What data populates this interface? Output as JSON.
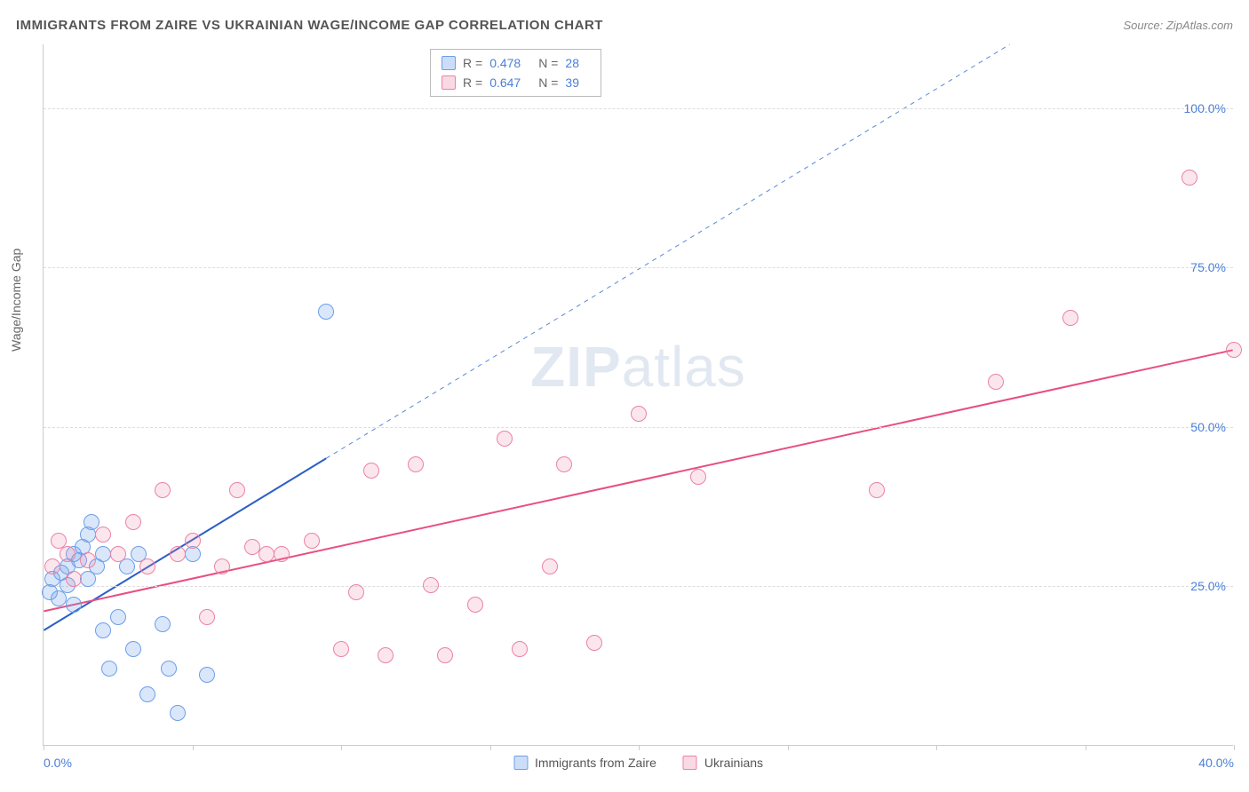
{
  "title": "IMMIGRANTS FROM ZAIRE VS UKRAINIAN WAGE/INCOME GAP CORRELATION CHART",
  "source": "Source: ZipAtlas.com",
  "y_axis_label": "Wage/Income Gap",
  "watermark": {
    "part1": "ZIP",
    "part2": "atlas"
  },
  "chart": {
    "type": "scatter",
    "xlim": [
      0,
      40
    ],
    "ylim": [
      0,
      110
    ],
    "x_ticks": [
      0,
      5,
      10,
      15,
      20,
      25,
      30,
      35,
      40
    ],
    "x_tick_labels": [
      "0.0%",
      "",
      "",
      "",
      "",
      "",
      "",
      "",
      "40.0%"
    ],
    "y_ticks": [
      25,
      50,
      75,
      100
    ],
    "y_tick_labels": [
      "25.0%",
      "50.0%",
      "75.0%",
      "100.0%"
    ],
    "background_color": "#ffffff",
    "grid_color": "#dddddd",
    "axis_color": "#cccccc",
    "marker_radius": 9,
    "series": [
      {
        "id": "s1",
        "label": "Immigrants from Zaire",
        "color_fill": "rgba(108,158,234,0.25)",
        "color_stroke": "#6c9eea",
        "r": "0.478",
        "n": "28",
        "trend": {
          "x1": 0,
          "y1": 18,
          "x2": 9.5,
          "y2": 45,
          "stroke": "#2b5fc7",
          "width": 2,
          "dash": "none"
        },
        "trend_ext": {
          "x1": 9.5,
          "y1": 45,
          "x2": 32.5,
          "y2": 110,
          "stroke": "#5a88d6",
          "width": 1,
          "dash": "5,5"
        },
        "points": [
          [
            0.2,
            24
          ],
          [
            0.3,
            26
          ],
          [
            0.5,
            23
          ],
          [
            0.6,
            27
          ],
          [
            0.8,
            25
          ],
          [
            0.8,
            28
          ],
          [
            1.0,
            22
          ],
          [
            1.0,
            30
          ],
          [
            1.2,
            29
          ],
          [
            1.3,
            31
          ],
          [
            1.5,
            26
          ],
          [
            1.5,
            33
          ],
          [
            1.6,
            35
          ],
          [
            1.8,
            28
          ],
          [
            2.0,
            30
          ],
          [
            2.0,
            18
          ],
          [
            2.2,
            12
          ],
          [
            2.5,
            20
          ],
          [
            2.8,
            28
          ],
          [
            3.0,
            15
          ],
          [
            3.2,
            30
          ],
          [
            3.5,
            8
          ],
          [
            4.0,
            19
          ],
          [
            4.2,
            12
          ],
          [
            4.5,
            5
          ],
          [
            5.0,
            30
          ],
          [
            5.5,
            11
          ],
          [
            9.5,
            68
          ]
        ]
      },
      {
        "id": "s2",
        "label": "Ukrainians",
        "color_fill": "rgba(236,130,164,0.20)",
        "color_stroke": "#ec82a4",
        "r": "0.647",
        "n": "39",
        "trend": {
          "x1": 0,
          "y1": 21,
          "x2": 40,
          "y2": 62,
          "stroke": "#e84f7e",
          "width": 2,
          "dash": "none"
        },
        "points": [
          [
            0.3,
            28
          ],
          [
            0.5,
            32
          ],
          [
            0.8,
            30
          ],
          [
            1.0,
            26
          ],
          [
            1.5,
            29
          ],
          [
            2.0,
            33
          ],
          [
            2.5,
            30
          ],
          [
            3.0,
            35
          ],
          [
            3.5,
            28
          ],
          [
            4.0,
            40
          ],
          [
            4.5,
            30
          ],
          [
            5.0,
            32
          ],
          [
            5.5,
            20
          ],
          [
            6.0,
            28
          ],
          [
            6.5,
            40
          ],
          [
            7.0,
            31
          ],
          [
            7.5,
            30
          ],
          [
            8.0,
            30
          ],
          [
            9.0,
            32
          ],
          [
            10.0,
            15
          ],
          [
            10.5,
            24
          ],
          [
            11.0,
            43
          ],
          [
            11.5,
            14
          ],
          [
            12.5,
            44
          ],
          [
            13.0,
            25
          ],
          [
            13.5,
            14
          ],
          [
            14.5,
            22
          ],
          [
            15.5,
            48
          ],
          [
            16.0,
            15
          ],
          [
            17.0,
            28
          ],
          [
            17.5,
            44
          ],
          [
            18.5,
            16
          ],
          [
            20.0,
            52
          ],
          [
            22.0,
            42
          ],
          [
            28.0,
            40
          ],
          [
            32.0,
            57
          ],
          [
            34.5,
            67
          ],
          [
            38.5,
            89
          ],
          [
            40.0,
            62
          ]
        ]
      }
    ]
  },
  "legend_top": {
    "rows": [
      {
        "series": "s1",
        "r_label": "R =",
        "r_value": "0.478",
        "n_label": "N =",
        "n_value": "28"
      },
      {
        "series": "s2",
        "r_label": "R =",
        "r_value": "0.647",
        "n_label": "N =",
        "n_value": "39"
      }
    ]
  }
}
